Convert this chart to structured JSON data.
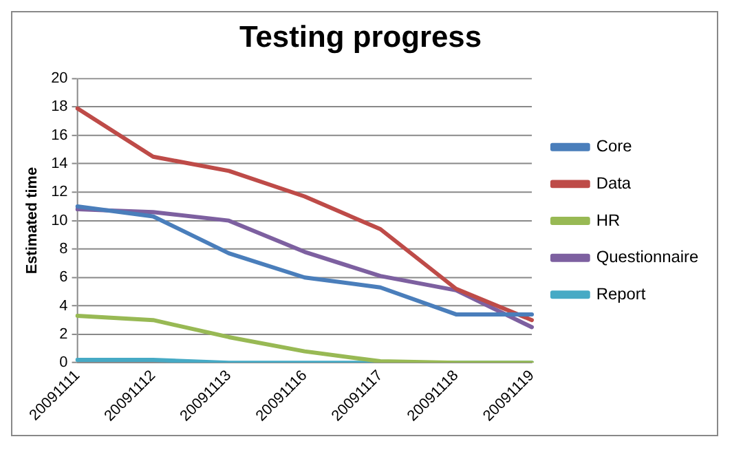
{
  "chart_data": {
    "type": "line",
    "title": "Testing progress",
    "ylabel": "Estimated time",
    "categories": [
      "20091111",
      "20091112",
      "20091113",
      "20091116",
      "20091117",
      "20091118",
      "20091119"
    ],
    "series": [
      {
        "name": "Core",
        "color": "#4a7ebb",
        "values": [
          11,
          10.3,
          7.7,
          6,
          5.3,
          3.4,
          3.4
        ]
      },
      {
        "name": "Data",
        "color": "#be4b48",
        "values": [
          17.9,
          14.5,
          13.5,
          11.7,
          9.4,
          5.2,
          3
        ]
      },
      {
        "name": "HR",
        "color": "#98b954",
        "values": [
          3.3,
          3,
          1.8,
          0.8,
          0.1,
          0,
          0
        ]
      },
      {
        "name": "Questionnaire",
        "color": "#7d60a0",
        "values": [
          10.8,
          10.6,
          10,
          7.8,
          6.1,
          5.1,
          2.5
        ]
      },
      {
        "name": "Report",
        "color": "#46aac5",
        "values": [
          0.2,
          0.2,
          0,
          0,
          0,
          0,
          0
        ]
      }
    ],
    "ylim": [
      0,
      20
    ],
    "yticks": [
      0,
      2,
      4,
      6,
      8,
      10,
      12,
      14,
      16,
      18,
      20
    ],
    "grid": "y",
    "legend": "right",
    "marker": "none",
    "line_style": "solid"
  }
}
